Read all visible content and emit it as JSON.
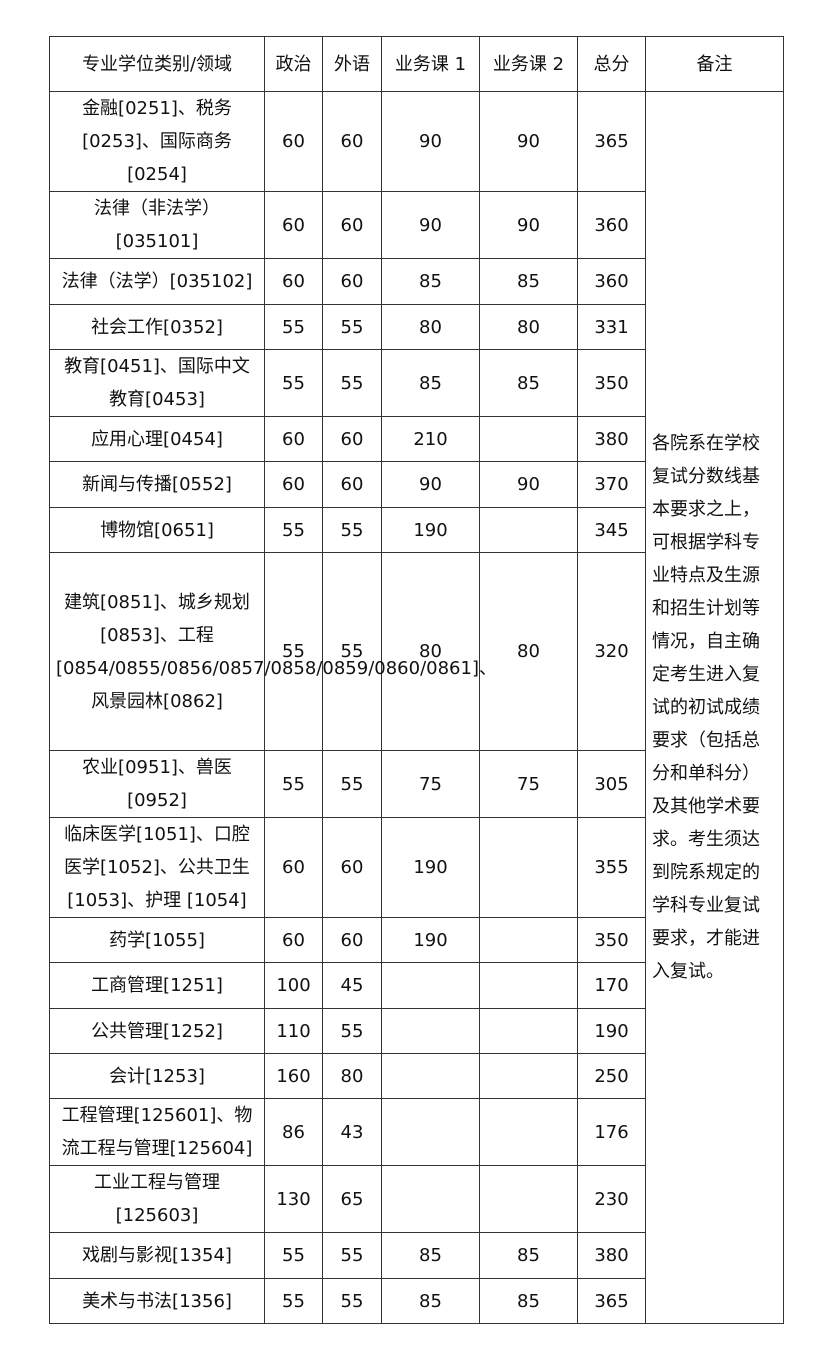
{
  "table": {
    "headers": [
      "专业学位类别/领域",
      "政治",
      "外语",
      "业务课 1",
      "业务课 2",
      "总分",
      "备注"
    ],
    "rows": [
      {
        "name": "金融[0251]、税务[0253]、国际商务[0254]",
        "politics": "60",
        "language": "60",
        "course1": "90",
        "course2": "90",
        "total": "365"
      },
      {
        "name": "法律（非法学）[035101]",
        "politics": "60",
        "language": "60",
        "course1": "90",
        "course2": "90",
        "total": "360"
      },
      {
        "name": "法律（法学）[035102]",
        "politics": "60",
        "language": "60",
        "course1": "85",
        "course2": "85",
        "total": "360"
      },
      {
        "name": "社会工作[0352]",
        "politics": "55",
        "language": "55",
        "course1": "80",
        "course2": "80",
        "total": "331"
      },
      {
        "name": "教育[0451]、国际中文教育[0453]",
        "politics": "55",
        "language": "55",
        "course1": "85",
        "course2": "85",
        "total": "350"
      },
      {
        "name": "应用心理[0454]",
        "politics": "60",
        "language": "60",
        "course1": "210",
        "course2": "",
        "total": "380"
      },
      {
        "name": "新闻与传播[0552]",
        "politics": "60",
        "language": "60",
        "course1": "90",
        "course2": "90",
        "total": "370"
      },
      {
        "name": "博物馆[0651]",
        "politics": "55",
        "language": "55",
        "course1": "190",
        "course2": "",
        "total": "345"
      },
      {
        "name": "建筑[0851]、城乡规划[0853]、工程[0854/0855/0856/0857/0858/0859/0860/0861]、风景园林[0862]",
        "politics": "55",
        "language": "55",
        "course1": "80",
        "course2": "80",
        "total": "320"
      },
      {
        "name": "农业[0951]、兽医[0952]",
        "politics": "55",
        "language": "55",
        "course1": "75",
        "course2": "75",
        "total": "305"
      },
      {
        "name": "临床医学[1051]、口腔医学[1052]、公共卫生[1053]、护理 [1054]",
        "politics": "60",
        "language": "60",
        "course1": "190",
        "course2": "",
        "total": "355"
      },
      {
        "name": "药学[1055]",
        "politics": "60",
        "language": "60",
        "course1": "190",
        "course2": "",
        "total": "350"
      },
      {
        "name": "工商管理[1251]",
        "politics": "100",
        "language": "45",
        "course1": "",
        "course2": "",
        "total": "170"
      },
      {
        "name": "公共管理[1252]",
        "politics": "110",
        "language": "55",
        "course1": "",
        "course2": "",
        "total": "190"
      },
      {
        "name": "会计[1253]",
        "politics": "160",
        "language": "80",
        "course1": "",
        "course2": "",
        "total": "250"
      },
      {
        "name": "工程管理[125601]、物流工程与管理[125604]",
        "politics": "86",
        "language": "43",
        "course1": "",
        "course2": "",
        "total": "176"
      },
      {
        "name": "工业工程与管理[125603]",
        "politics": "130",
        "language": "65",
        "course1": "",
        "course2": "",
        "total": "230"
      },
      {
        "name": "戏剧与影视[1354]",
        "politics": "55",
        "language": "55",
        "course1": "85",
        "course2": "85",
        "total": "380"
      },
      {
        "name": "美术与书法[1356]",
        "politics": "55",
        "language": "55",
        "course1": "85",
        "course2": "85",
        "total": "365"
      }
    ],
    "note": "各院系在学校复试分数线基本要求之上，可根据学科专业特点及生源和招生计划等情况，自主确定考生进入复试的初试成绩要求（包括总分和单科分）及其他学术要求。考生须达到院系规定的学科专业复试要求，才能进入复试。"
  }
}
